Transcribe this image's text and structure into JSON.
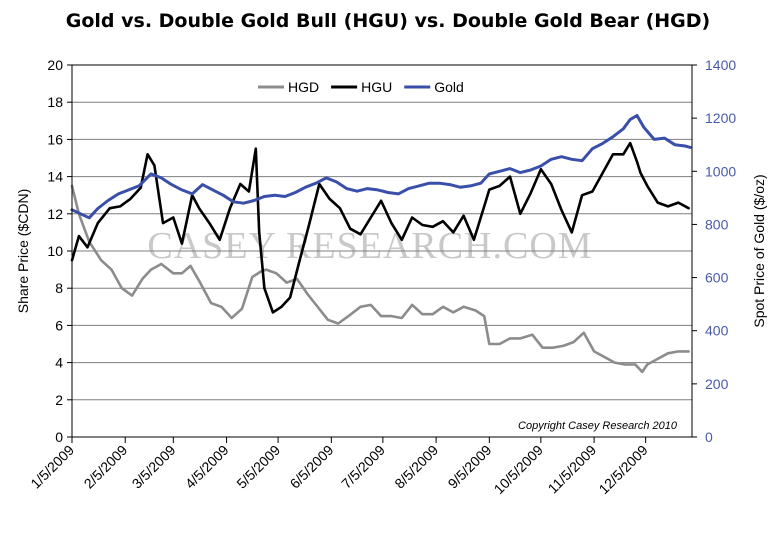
{
  "chart_data": {
    "type": "line",
    "title": "Gold vs. Double Gold Bull (HGU) vs. Double Gold Bear (HGD)",
    "ylabel": "Share Price ($CDN)",
    "y2label": "Spot Price of Gold ($/oz)",
    "ylim": [
      0,
      20
    ],
    "y2lim": [
      0,
      1400
    ],
    "yticks": [
      "0",
      "2",
      "4",
      "6",
      "8",
      "10",
      "12",
      "14",
      "16",
      "18",
      "20"
    ],
    "y2ticks": [
      "0",
      "200",
      "400",
      "600",
      "800",
      "1000",
      "1200",
      "1400"
    ],
    "xticks": [
      "1/5/2009",
      "2/5/2009",
      "3/5/2009",
      "4/5/2009",
      "5/5/2009",
      "6/5/2009",
      "7/5/2009",
      "8/5/2009",
      "9/5/2009",
      "10/5/2009",
      "11/5/2009",
      "12/5/2009"
    ],
    "xlim": [
      "2009-01-05",
      "2010-01-01"
    ],
    "grid": "horizontal",
    "legend_position": "top-center",
    "copyright": "Copyright Casey Research 2010",
    "watermark": "CASEY RESEARCH.COM",
    "series": [
      {
        "name": "HGD",
        "axis": "left",
        "color": "#8c8c8c",
        "dates": [
          "2009-01-05",
          "2009-01-09",
          "2009-01-15",
          "2009-01-22",
          "2009-01-28",
          "2009-02-03",
          "2009-02-09",
          "2009-02-15",
          "2009-02-20",
          "2009-02-26",
          "2009-03-05",
          "2009-03-10",
          "2009-03-15",
          "2009-03-20",
          "2009-03-27",
          "2009-04-02",
          "2009-04-08",
          "2009-04-14",
          "2009-04-20",
          "2009-04-25",
          "2009-04-28",
          "2009-05-04",
          "2009-05-10",
          "2009-05-16",
          "2009-05-22",
          "2009-05-28",
          "2009-06-03",
          "2009-06-09",
          "2009-06-15",
          "2009-06-22",
          "2009-06-28",
          "2009-07-04",
          "2009-07-10",
          "2009-07-16",
          "2009-07-22",
          "2009-07-28",
          "2009-08-03",
          "2009-08-09",
          "2009-08-15",
          "2009-08-21",
          "2009-08-28",
          "2009-09-02",
          "2009-09-05",
          "2009-09-11",
          "2009-09-17",
          "2009-09-23",
          "2009-09-30",
          "2009-10-06",
          "2009-10-12",
          "2009-10-18",
          "2009-10-24",
          "2009-10-30",
          "2009-11-05",
          "2009-11-11",
          "2009-11-17",
          "2009-11-23",
          "2009-11-29",
          "2009-12-03",
          "2009-12-06",
          "2009-12-12",
          "2009-12-18",
          "2009-12-24",
          "2009-12-30"
        ],
        "values": [
          13.5,
          12.0,
          10.5,
          9.5,
          9.0,
          8.0,
          7.6,
          8.5,
          9.0,
          9.3,
          8.8,
          8.8,
          9.2,
          8.4,
          7.2,
          7.0,
          6.4,
          6.9,
          8.6,
          8.9,
          9.0,
          8.8,
          8.3,
          8.5,
          7.7,
          7.0,
          6.3,
          6.1,
          6.5,
          7.0,
          7.1,
          6.5,
          6.5,
          6.4,
          7.1,
          6.6,
          6.6,
          7.0,
          6.7,
          7.0,
          6.8,
          6.5,
          5.0,
          5.0,
          5.3,
          5.3,
          5.5,
          4.8,
          4.8,
          4.9,
          5.1,
          5.6,
          4.6,
          4.3,
          4.0,
          3.9,
          3.9,
          3.5,
          3.9,
          4.2,
          4.5,
          4.6,
          4.6
        ]
      },
      {
        "name": "HGU",
        "axis": "left",
        "color": "#000000",
        "dates": [
          "2009-01-05",
          "2009-01-09",
          "2009-01-14",
          "2009-01-20",
          "2009-01-27",
          "2009-02-02",
          "2009-02-08",
          "2009-02-14",
          "2009-02-18",
          "2009-02-22",
          "2009-02-27",
          "2009-03-05",
          "2009-03-10",
          "2009-03-16",
          "2009-03-20",
          "2009-03-26",
          "2009-04-01",
          "2009-04-07",
          "2009-04-13",
          "2009-04-18",
          "2009-04-22",
          "2009-04-24",
          "2009-04-27",
          "2009-05-02",
          "2009-05-07",
          "2009-05-12",
          "2009-05-17",
          "2009-05-23",
          "2009-05-29",
          "2009-06-04",
          "2009-06-10",
          "2009-06-16",
          "2009-06-22",
          "2009-06-28",
          "2009-07-04",
          "2009-07-10",
          "2009-07-16",
          "2009-07-22",
          "2009-07-28",
          "2009-08-03",
          "2009-08-09",
          "2009-08-15",
          "2009-08-21",
          "2009-08-27",
          "2009-09-02",
          "2009-09-05",
          "2009-09-11",
          "2009-09-17",
          "2009-09-23",
          "2009-09-29",
          "2009-10-05",
          "2009-10-11",
          "2009-10-17",
          "2009-10-23",
          "2009-10-29",
          "2009-11-04",
          "2009-11-10",
          "2009-11-16",
          "2009-11-22",
          "2009-11-26",
          "2009-11-30",
          "2009-12-02",
          "2009-12-06",
          "2009-12-12",
          "2009-12-18",
          "2009-12-24",
          "2009-12-30"
        ],
        "values": [
          9.5,
          10.8,
          10.2,
          11.5,
          12.3,
          12.4,
          12.8,
          13.4,
          15.2,
          14.6,
          11.5,
          11.8,
          10.4,
          13.0,
          12.3,
          11.5,
          10.6,
          12.3,
          13.6,
          13.2,
          15.5,
          11.0,
          8.0,
          6.7,
          7.0,
          7.5,
          9.3,
          11.4,
          13.6,
          12.8,
          12.3,
          11.2,
          10.9,
          11.8,
          12.7,
          11.5,
          10.6,
          11.8,
          11.4,
          11.3,
          11.6,
          11.0,
          11.9,
          10.6,
          12.4,
          13.3,
          13.5,
          14.0,
          12.0,
          13.1,
          14.4,
          13.6,
          12.2,
          11.0,
          13.0,
          13.2,
          14.2,
          15.2,
          15.2,
          15.8,
          14.8,
          14.2,
          13.5,
          12.6,
          12.4,
          12.6,
          12.3
        ]
      },
      {
        "name": "Gold",
        "axis": "right",
        "color": "#3a4faa",
        "dates": [
          "2009-01-05",
          "2009-01-10",
          "2009-01-15",
          "2009-01-20",
          "2009-01-26",
          "2009-02-01",
          "2009-02-07",
          "2009-02-13",
          "2009-02-20",
          "2009-02-26",
          "2009-03-04",
          "2009-03-10",
          "2009-03-16",
          "2009-03-22",
          "2009-03-28",
          "2009-04-03",
          "2009-04-09",
          "2009-04-15",
          "2009-04-21",
          "2009-04-27",
          "2009-05-03",
          "2009-05-09",
          "2009-05-15",
          "2009-05-21",
          "2009-05-27",
          "2009-06-02",
          "2009-06-08",
          "2009-06-14",
          "2009-06-20",
          "2009-06-26",
          "2009-07-02",
          "2009-07-08",
          "2009-07-14",
          "2009-07-20",
          "2009-07-26",
          "2009-08-01",
          "2009-08-07",
          "2009-08-13",
          "2009-08-19",
          "2009-08-25",
          "2009-08-31",
          "2009-09-05",
          "2009-09-11",
          "2009-09-17",
          "2009-09-23",
          "2009-09-29",
          "2009-10-05",
          "2009-10-11",
          "2009-10-17",
          "2009-10-23",
          "2009-10-29",
          "2009-11-04",
          "2009-11-10",
          "2009-11-16",
          "2009-11-22",
          "2009-11-26",
          "2009-11-30",
          "2009-12-04",
          "2009-12-10",
          "2009-12-16",
          "2009-12-22",
          "2009-12-28",
          "2009-12-31"
        ],
        "values": [
          855,
          840,
          825,
          860,
          890,
          915,
          930,
          945,
          990,
          975,
          950,
          930,
          915,
          950,
          930,
          910,
          885,
          880,
          890,
          905,
          910,
          905,
          920,
          940,
          955,
          975,
          960,
          935,
          925,
          935,
          930,
          920,
          915,
          935,
          945,
          955,
          955,
          950,
          940,
          945,
          955,
          990,
          1000,
          1010,
          995,
          1005,
          1020,
          1045,
          1055,
          1045,
          1040,
          1085,
          1105,
          1130,
          1160,
          1195,
          1210,
          1165,
          1120,
          1125,
          1100,
          1095,
          1090
        ]
      }
    ]
  }
}
